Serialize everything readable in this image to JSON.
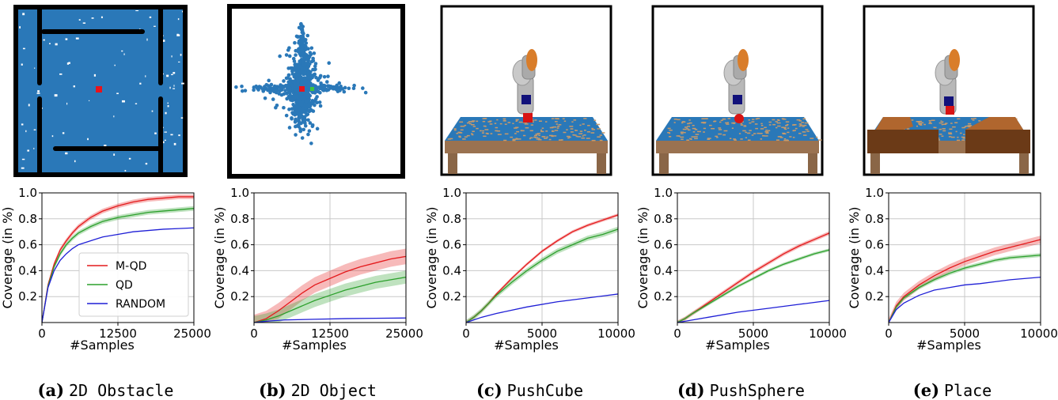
{
  "panels": [
    {
      "caption_letter": "(a)",
      "caption_name": "2D Obstacle",
      "scene": "maze",
      "chart_data": {
        "type": "line",
        "xlabel": "#Samples",
        "ylabel": "Coverage (in %)",
        "xlim": [
          0,
          25000
        ],
        "ylim": [
          0,
          1.0
        ],
        "xticks": [
          0,
          12500,
          25000
        ],
        "yticks": [
          0.2,
          0.4,
          0.6,
          0.8,
          1.0
        ],
        "grid": true,
        "legend": "lower-right",
        "series": [
          {
            "name": "M-QD",
            "color": "#e41a1c",
            "band": 0.018,
            "x": [
              0,
              1000,
              2000,
              3000,
              4000,
              5000,
              6000,
              8000,
              10000,
              12500,
              15000,
              17500,
              20000,
              22500,
              25000
            ],
            "y": [
              0,
              0.29,
              0.45,
              0.56,
              0.63,
              0.69,
              0.74,
              0.81,
              0.86,
              0.9,
              0.93,
              0.95,
              0.96,
              0.97,
              0.97
            ]
          },
          {
            "name": "QD",
            "color": "#2ca02c",
            "band": 0.018,
            "x": [
              0,
              1000,
              2000,
              3000,
              4000,
              5000,
              6000,
              8000,
              10000,
              12500,
              15000,
              17500,
              20000,
              22500,
              25000
            ],
            "y": [
              0,
              0.28,
              0.43,
              0.53,
              0.6,
              0.65,
              0.69,
              0.74,
              0.78,
              0.81,
              0.83,
              0.85,
              0.86,
              0.87,
              0.88
            ]
          },
          {
            "name": "RANDOM",
            "color": "#1f1fd6",
            "band": 0,
            "x": [
              0,
              1000,
              2000,
              3000,
              4000,
              5000,
              6000,
              8000,
              10000,
              12500,
              15000,
              17500,
              20000,
              22500,
              25000
            ],
            "y": [
              0,
              0.27,
              0.4,
              0.48,
              0.53,
              0.57,
              0.6,
              0.63,
              0.66,
              0.68,
              0.7,
              0.71,
              0.72,
              0.725,
              0.73
            ]
          }
        ]
      }
    },
    {
      "caption_letter": "(b)",
      "caption_name": "2D Object",
      "scene": "scatter",
      "chart_data": {
        "type": "line",
        "xlabel": "#Samples",
        "ylabel": "Coverage (in %)",
        "xlim": [
          0,
          25000
        ],
        "ylim": [
          0,
          1.0
        ],
        "xticks": [
          0,
          12500,
          25000
        ],
        "yticks": [
          0.2,
          0.4,
          0.6,
          0.8,
          1.0
        ],
        "grid": true,
        "series": [
          {
            "name": "M-QD",
            "color": "#e41a1c",
            "band": 0.06,
            "x": [
              0,
              2000,
              4000,
              6000,
              8000,
              10000,
              12500,
              15000,
              17500,
              20000,
              22500,
              25000
            ],
            "y": [
              0,
              0.03,
              0.09,
              0.16,
              0.23,
              0.29,
              0.34,
              0.39,
              0.43,
              0.46,
              0.49,
              0.51
            ]
          },
          {
            "name": "QD",
            "color": "#2ca02c",
            "band": 0.05,
            "x": [
              0,
              2000,
              4000,
              6000,
              8000,
              10000,
              12500,
              15000,
              17500,
              20000,
              22500,
              25000
            ],
            "y": [
              0,
              0.02,
              0.05,
              0.09,
              0.13,
              0.17,
              0.21,
              0.25,
              0.28,
              0.31,
              0.33,
              0.35
            ]
          },
          {
            "name": "RANDOM",
            "color": "#1f1fd6",
            "band": 0,
            "x": [
              0,
              2000,
              5000,
              10000,
              15000,
              20000,
              25000
            ],
            "y": [
              0,
              0.01,
              0.02,
              0.025,
              0.03,
              0.033,
              0.035
            ]
          }
        ]
      }
    },
    {
      "caption_letter": "(c)",
      "caption_name": "PushCube",
      "scene": "robot-cube",
      "chart_data": {
        "type": "line",
        "xlabel": "#Samples",
        "ylabel": "Coverage (in %)",
        "xlim": [
          0,
          10000
        ],
        "ylim": [
          0,
          1.0
        ],
        "xticks": [
          0,
          5000,
          10000
        ],
        "yticks": [
          0.2,
          0.4,
          0.6,
          0.8,
          1.0
        ],
        "grid": true,
        "series": [
          {
            "name": "M-QD",
            "color": "#e41a1c",
            "band": 0.012,
            "x": [
              0,
              500,
              1000,
              1500,
              2000,
              3000,
              4000,
              5000,
              6000,
              7000,
              8000,
              9000,
              10000
            ],
            "y": [
              0,
              0.04,
              0.09,
              0.15,
              0.22,
              0.34,
              0.45,
              0.55,
              0.63,
              0.7,
              0.75,
              0.79,
              0.83
            ]
          },
          {
            "name": "QD",
            "color": "#2ca02c",
            "band": 0.02,
            "x": [
              0,
              500,
              1000,
              1500,
              2000,
              3000,
              4000,
              5000,
              6000,
              7000,
              8000,
              9000,
              10000
            ],
            "y": [
              0,
              0.04,
              0.09,
              0.15,
              0.21,
              0.31,
              0.4,
              0.48,
              0.55,
              0.6,
              0.65,
              0.68,
              0.72
            ]
          },
          {
            "name": "RANDOM",
            "color": "#1f1fd6",
            "band": 0,
            "x": [
              0,
              500,
              1000,
              2000,
              4000,
              6000,
              8000,
              10000
            ],
            "y": [
              0,
              0.02,
              0.04,
              0.07,
              0.12,
              0.16,
              0.19,
              0.22
            ]
          }
        ]
      }
    },
    {
      "caption_letter": "(d)",
      "caption_name": "PushSphere",
      "scene": "robot-sphere",
      "chart_data": {
        "type": "line",
        "xlabel": "#Samples",
        "ylabel": "Coverage (in %)",
        "xlim": [
          0,
          10000
        ],
        "ylim": [
          0,
          1.0
        ],
        "xticks": [
          0,
          5000,
          10000
        ],
        "yticks": [
          0.2,
          0.4,
          0.6,
          0.8,
          1.0
        ],
        "grid": true,
        "series": [
          {
            "name": "M-QD",
            "color": "#e41a1c",
            "band": 0.015,
            "x": [
              0,
              500,
              1000,
              2000,
              3000,
              4000,
              5000,
              6000,
              7000,
              8000,
              9000,
              10000
            ],
            "y": [
              0,
              0.03,
              0.07,
              0.15,
              0.23,
              0.31,
              0.39,
              0.46,
              0.53,
              0.59,
              0.64,
              0.69
            ]
          },
          {
            "name": "QD",
            "color": "#2ca02c",
            "band": 0.012,
            "x": [
              0,
              500,
              1000,
              2000,
              3000,
              4000,
              5000,
              6000,
              7000,
              8000,
              9000,
              10000
            ],
            "y": [
              0,
              0.03,
              0.07,
              0.14,
              0.21,
              0.28,
              0.34,
              0.4,
              0.45,
              0.49,
              0.53,
              0.56
            ]
          },
          {
            "name": "RANDOM",
            "color": "#1f1fd6",
            "band": 0,
            "x": [
              0,
              500,
              1000,
              2000,
              4000,
              6000,
              8000,
              10000
            ],
            "y": [
              0,
              0.01,
              0.02,
              0.04,
              0.08,
              0.11,
              0.14,
              0.17
            ]
          }
        ]
      }
    },
    {
      "caption_letter": "(e)",
      "caption_name": "Place",
      "scene": "robot-place",
      "chart_data": {
        "type": "line",
        "xlabel": "#Samples",
        "ylabel": "Coverage (in %)",
        "xlim": [
          0,
          10000
        ],
        "ylim": [
          0,
          1.0
        ],
        "xticks": [
          0,
          5000,
          10000
        ],
        "yticks": [
          0.2,
          0.4,
          0.6,
          0.8,
          1.0
        ],
        "grid": true,
        "series": [
          {
            "name": "M-QD",
            "color": "#e41a1c",
            "band": 0.03,
            "x": [
              0,
              500,
              1000,
              2000,
              3000,
              4000,
              5000,
              6000,
              7000,
              8000,
              9000,
              10000
            ],
            "y": [
              0,
              0.13,
              0.2,
              0.29,
              0.36,
              0.42,
              0.47,
              0.51,
              0.55,
              0.58,
              0.61,
              0.64
            ]
          },
          {
            "name": "QD",
            "color": "#2ca02c",
            "band": 0.015,
            "x": [
              0,
              500,
              1000,
              2000,
              3000,
              4000,
              5000,
              6000,
              7000,
              8000,
              9000,
              10000
            ],
            "y": [
              0,
              0.12,
              0.19,
              0.27,
              0.33,
              0.38,
              0.42,
              0.45,
              0.48,
              0.5,
              0.51,
              0.52
            ]
          },
          {
            "name": "RANDOM",
            "color": "#1f1fd6",
            "band": 0,
            "x": [
              0,
              500,
              1000,
              2000,
              3000,
              4000,
              5000,
              6000,
              7000,
              8000,
              9000,
              10000
            ],
            "y": [
              0,
              0.1,
              0.15,
              0.21,
              0.25,
              0.27,
              0.29,
              0.3,
              0.315,
              0.33,
              0.34,
              0.35
            ]
          }
        ]
      }
    }
  ]
}
